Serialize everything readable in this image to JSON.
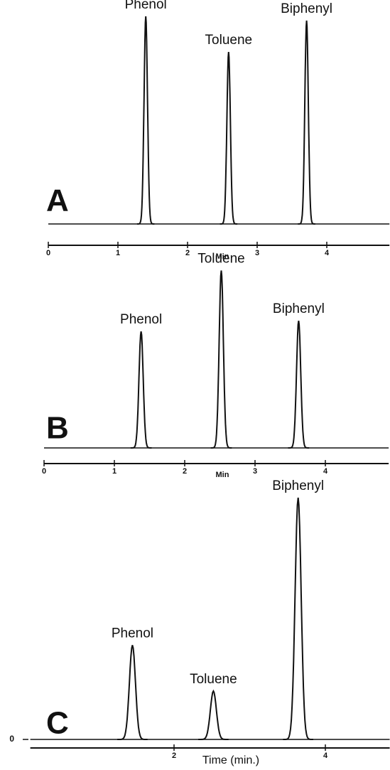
{
  "chart_data": [
    {
      "type": "chromatogram",
      "panel_label": "A",
      "xlabel": "Min",
      "categories": [
        "Phenol",
        "Toluene",
        "Biphenyl"
      ],
      "x": [
        1.4,
        2.59,
        3.71
      ],
      "values": [
        99,
        82,
        97
      ],
      "xlim": [
        0,
        4.9
      ],
      "xticks": [
        0,
        1,
        2,
        3,
        4
      ],
      "ylim": [
        0,
        100
      ]
    },
    {
      "type": "chromatogram",
      "panel_label": "B",
      "xlabel": "Min",
      "categories": [
        "Phenol",
        "Toluene",
        "Biphenyl"
      ],
      "x": [
        1.38,
        2.52,
        3.62
      ],
      "values": [
        65,
        99,
        71
      ],
      "xlim": [
        0,
        4.9
      ],
      "xticks": [
        0,
        1,
        2,
        3,
        4
      ],
      "ylim": [
        0,
        100
      ]
    },
    {
      "type": "chromatogram",
      "panel_label": "C",
      "xlabel": "Time (min.)",
      "categories": [
        "Phenol",
        "Toluene",
        "Biphenyl"
      ],
      "x": [
        1.45,
        2.52,
        3.64
      ],
      "values": [
        39,
        20,
        100
      ],
      "xlim": [
        0.1,
        4.85
      ],
      "xticks": [
        2,
        4
      ],
      "ylim": [
        0,
        100
      ],
      "yticks": [
        0
      ]
    }
  ]
}
